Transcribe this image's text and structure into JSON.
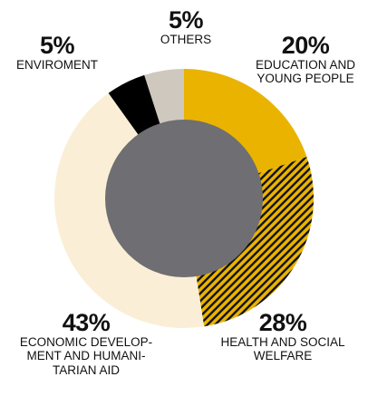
{
  "chart_data": {
    "type": "pie",
    "style": "donut",
    "start_angle_deg": 0,
    "direction": "clockwise",
    "slices": [
      {
        "key": "education",
        "percent": 20,
        "value_label": "20%",
        "lines": [
          "EDUCATION AND",
          "YOUNG PEOPLE"
        ],
        "color": "#e9b300",
        "pattern": "solid"
      },
      {
        "key": "health",
        "percent": 28,
        "value_label": "28%",
        "lines": [
          "HEALTH AND SOCIAL",
          "WELFARE"
        ],
        "color": "#e9b300",
        "pattern": "diagonal-stripes",
        "stripe_color": "#111111"
      },
      {
        "key": "economic",
        "percent": 43,
        "value_label": "43%",
        "lines": [
          "ECONOMIC DEVELOP-",
          "MENT AND HUMANI-",
          "TARIAN AID"
        ],
        "color": "#faefd6",
        "pattern": "solid"
      },
      {
        "key": "environment",
        "percent": 5,
        "value_label": "5%",
        "lines": [
          "ENVIROMENT"
        ],
        "color": "#000000",
        "pattern": "solid"
      },
      {
        "key": "others",
        "percent": 5,
        "value_label": "5%",
        "lines": [
          "OTHERS"
        ],
        "color": "#cfc8be",
        "pattern": "solid"
      }
    ],
    "center_color": "#6e6e73",
    "legend": "none",
    "grid": false
  }
}
